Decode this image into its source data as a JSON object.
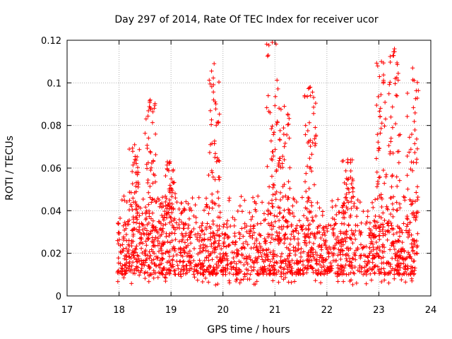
{
  "chart_data": {
    "type": "scatter",
    "title": "Day 297 of 2014, Rate Of TEC Index for receiver ucor",
    "xlabel": "GPS time / hours",
    "ylabel": "ROTI / TECUs",
    "xlim": [
      17,
      24
    ],
    "ylim": [
      0,
      0.12
    ],
    "xticks": [
      17,
      18,
      19,
      20,
      21,
      22,
      23,
      24
    ],
    "xtick_labels": [
      "17",
      "18",
      "19",
      "20",
      "21",
      "22",
      "23",
      "24"
    ],
    "yticks": [
      0,
      0.02,
      0.04,
      0.06,
      0.08,
      0.1,
      0.12
    ],
    "ytick_labels": [
      "0",
      "0.02",
      "0.04",
      "0.06",
      "0.08",
      "0.1",
      "0.12"
    ],
    "grid": true,
    "marker": "+",
    "color": "#ff0000",
    "series": [
      {
        "name": "ROTI",
        "x_range": [
          17.97,
          23.75
        ],
        "baseline_low": 0.01,
        "baseline_high": 0.035,
        "notable_peaks": [
          {
            "x": 18.3,
            "y": 0.071
          },
          {
            "x": 18.6,
            "y": 0.092
          },
          {
            "x": 18.98,
            "y": 0.063
          },
          {
            "x": 19.83,
            "y": 0.109
          },
          {
            "x": 20.95,
            "y": 0.119
          },
          {
            "x": 21.18,
            "y": 0.089
          },
          {
            "x": 21.68,
            "y": 0.098
          },
          {
            "x": 22.4,
            "y": 0.064
          },
          {
            "x": 23.05,
            "y": 0.11
          },
          {
            "x": 23.3,
            "y": 0.116
          },
          {
            "x": 23.65,
            "y": 0.107
          }
        ]
      }
    ]
  }
}
